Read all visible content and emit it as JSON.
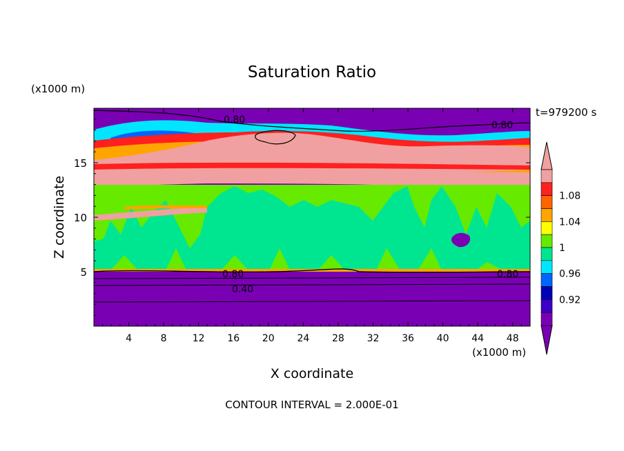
{
  "chart_data": {
    "type": "heatmap",
    "title": "Saturation Ratio",
    "xlabel": "X coordinate",
    "ylabel": "Z coordinate",
    "x_unit": "(x1000 m)",
    "y_unit": "(x1000 m)",
    "time_label": "t=979200 s",
    "footer": "CONTOUR INTERVAL = 2.000E-01",
    "xlim": [
      0,
      50
    ],
    "ylim": [
      0,
      20
    ],
    "x_ticks": [
      "4",
      "8",
      "12",
      "16",
      "20",
      "24",
      "28",
      "32",
      "36",
      "40",
      "44",
      "48"
    ],
    "y_ticks": [
      "5",
      "10",
      "15"
    ],
    "colorbar": {
      "labels": [
        "0.92",
        "0.96",
        "1",
        "1.04",
        "1.08"
      ],
      "colors": [
        "#7a00b4",
        "#3c00c8",
        "#0000b4",
        "#0064ff",
        "#00e6ff",
        "#00e690",
        "#66ea00",
        "#ffff00",
        "#ffa500",
        "#ff6400",
        "#ff2020",
        "#f0a0a0"
      ]
    },
    "contour_labels": [
      "0.80",
      "0.80",
      "0.80",
      "0.80",
      "0.40"
    ],
    "contour_levels": [
      0.4,
      0.6,
      0.8,
      1.0,
      1.2
    ]
  }
}
